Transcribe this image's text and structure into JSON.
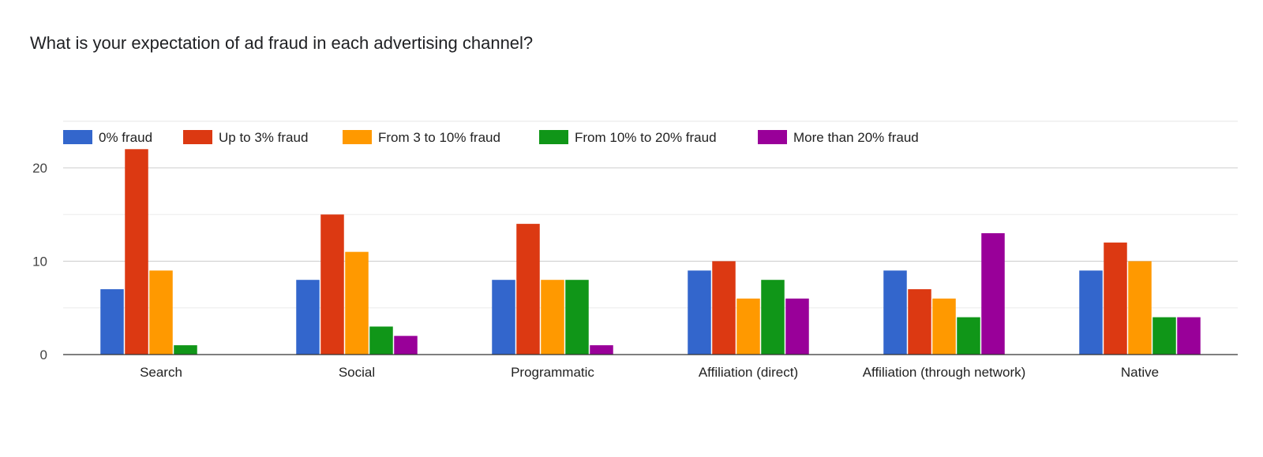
{
  "chart_data": {
    "type": "bar",
    "title": "What is your expectation of ad fraud in each advertising channel?",
    "xlabel": "",
    "ylabel": "",
    "categories": [
      "Search",
      "Social",
      "Programmatic",
      "Affiliation (direct)",
      "Affiliation (through network)",
      "Native"
    ],
    "series": [
      {
        "name": "0% fraud",
        "color": "#3366cc",
        "values": [
          7,
          8,
          8,
          9,
          9,
          9
        ]
      },
      {
        "name": "Up to 3% fraud",
        "color": "#dc3912",
        "values": [
          22,
          15,
          14,
          10,
          7,
          12
        ]
      },
      {
        "name": "From 3 to 10% fraud",
        "color": "#ff9900",
        "values": [
          9,
          11,
          8,
          6,
          6,
          10
        ]
      },
      {
        "name": "From 10% to 20% fraud",
        "color": "#109618",
        "values": [
          1,
          3,
          8,
          8,
          4,
          4
        ]
      },
      {
        "name": "More than 20% fraud",
        "color": "#990099",
        "values": [
          0,
          2,
          1,
          6,
          13,
          4
        ]
      }
    ],
    "yticks": [
      "0",
      "10",
      "20"
    ],
    "ylim": [
      0,
      25
    ],
    "grid": true,
    "legend_position": "top"
  }
}
